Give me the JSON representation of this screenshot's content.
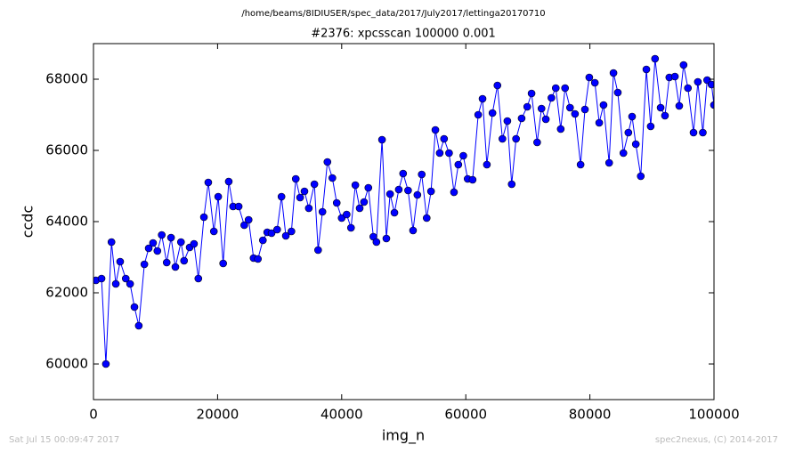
{
  "chart_data": {
    "type": "line",
    "suptitle": "/home/beams/8IDIUSER/spec_data/2017/July2017/lettinga20170710",
    "title": "#2376: xpcsscan 100000 0.001",
    "xlabel": "img_n",
    "ylabel": "ccdc",
    "footer_left": "Sat Jul 15 00:09:47 2017",
    "footer_right": "spec2nexus, (C) 2014-2017",
    "color": "#0000ff",
    "marker": true,
    "xlim": [
      0,
      100000
    ],
    "xticks": [
      0,
      20000,
      40000,
      60000,
      80000,
      100000
    ],
    "ylim": [
      59000,
      69000
    ],
    "yticks": [
      60000,
      62000,
      64000,
      66000,
      68000
    ],
    "x": [
      400,
      1300,
      2000,
      2900,
      3600,
      4300,
      5200,
      5900,
      6600,
      7300,
      8200,
      8900,
      9600,
      10300,
      11000,
      11800,
      12500,
      13200,
      14100,
      14600,
      15500,
      16200,
      16900,
      17800,
      18500,
      19400,
      20100,
      20900,
      21800,
      22500,
      23400,
      24300,
      25000,
      25800,
      26500,
      27300,
      28000,
      28700,
      29600,
      30300,
      31000,
      31900,
      32600,
      33300,
      34000,
      34700,
      35600,
      36200,
      36900,
      37700,
      38500,
      39200,
      40000,
      40800,
      41500,
      42200,
      42900,
      43600,
      44300,
      45100,
      45600,
      46500,
      47200,
      47800,
      48500,
      49200,
      49900,
      50700,
      51500,
      52200,
      52900,
      53700,
      54400,
      55100,
      55800,
      56500,
      57300,
      58100,
      58800,
      59600,
      60300,
      61100,
      62000,
      62700,
      63400,
      64300,
      65100,
      65900,
      66700,
      67400,
      68100,
      69000,
      69900,
      70600,
      71500,
      72200,
      72900,
      73800,
      74500,
      75300,
      76000,
      76800,
      77600,
      78500,
      79200,
      79900,
      80800,
      81500,
      82200,
      83100,
      83800,
      84500,
      85400,
      86200,
      86800,
      87400,
      88200,
      89100,
      89800,
      90500,
      91400,
      92100,
      92800,
      93700,
      94400,
      95100,
      95800,
      96700,
      97400,
      98200,
      98900,
      99600,
      100000
    ],
    "values": [
      62350,
      62400,
      60000,
      63425,
      62250,
      62875,
      62400,
      62250,
      61600,
      61075,
      62800,
      63250,
      63400,
      63175,
      63625,
      62850,
      63550,
      62725,
      63425,
      62900,
      63275,
      63375,
      62400,
      64125,
      65100,
      63725,
      64700,
      62825,
      65125,
      64425,
      64425,
      63900,
      64050,
      62975,
      62950,
      63475,
      63700,
      63675,
      63775,
      64700,
      63600,
      63725,
      65200,
      64675,
      64850,
      64375,
      65050,
      63200,
      64275,
      65675,
      65225,
      64525,
      64100,
      64200,
      63825,
      65025,
      64375,
      64550,
      64950,
      63575,
      63425,
      66300,
      63525,
      64775,
      64250,
      64900,
      65350,
      64875,
      63750,
      64750,
      65325,
      64100,
      64850,
      66575,
      65925,
      66325,
      65925,
      64825,
      65600,
      65850,
      65200,
      65175,
      67000,
      67450,
      65600,
      67050,
      67825,
      66325,
      66825,
      65050,
      66325,
      66900,
      67225,
      67600,
      66225,
      67175,
      66875,
      67475,
      67750,
      66600,
      67750,
      67200,
      67025,
      65600,
      67150,
      68050,
      67900,
      66775,
      67275,
      65650,
      68175,
      67625,
      65925,
      66500,
      66950,
      66175,
      65275,
      68275,
      66675,
      68575,
      67200,
      66975,
      68050,
      68075,
      67250,
      68400,
      67750,
      66500,
      67925,
      66500,
      67975,
      67850,
      67275
    ]
  }
}
